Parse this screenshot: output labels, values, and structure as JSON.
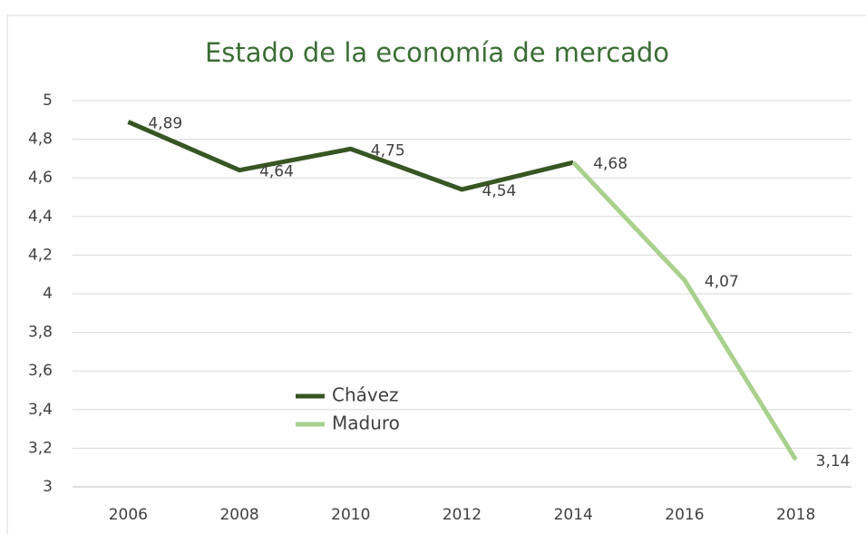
{
  "chart_data": {
    "type": "line",
    "title": "Estado de la economía de mercado",
    "categories": [
      "2006",
      "2008",
      "2010",
      "2012",
      "2014",
      "2016",
      "2018"
    ],
    "series": [
      {
        "name": "Chávez",
        "color": "#375623",
        "values": [
          4.89,
          4.64,
          4.75,
          4.54,
          4.68,
          null,
          null
        ],
        "value_labels": [
          "4,89",
          "4,64",
          "4,75",
          "4,54",
          "4,68",
          null,
          null
        ]
      },
      {
        "name": "Maduro",
        "color": "#a9d18e",
        "values": [
          null,
          null,
          null,
          null,
          4.68,
          4.07,
          3.14
        ],
        "value_labels": [
          null,
          null,
          null,
          null,
          null,
          "4,07",
          "3,14"
        ]
      }
    ],
    "ylim": [
      3,
      5
    ],
    "yticks": [
      3,
      {
        "value": 3.2,
        "label": "3,2"
      },
      {
        "value": 3.4,
        "label": "3,4"
      },
      {
        "value": 3.6,
        "label": "3,6"
      },
      {
        "value": 3.8,
        "label": "3,8"
      },
      4,
      {
        "value": 4.2,
        "label": "4,2"
      },
      {
        "value": 4.4,
        "label": "4,4"
      },
      {
        "value": 4.6,
        "label": "4,6"
      },
      {
        "value": 4.8,
        "label": "4,8"
      },
      5
    ],
    "grid": true,
    "legend": "lower-left"
  }
}
